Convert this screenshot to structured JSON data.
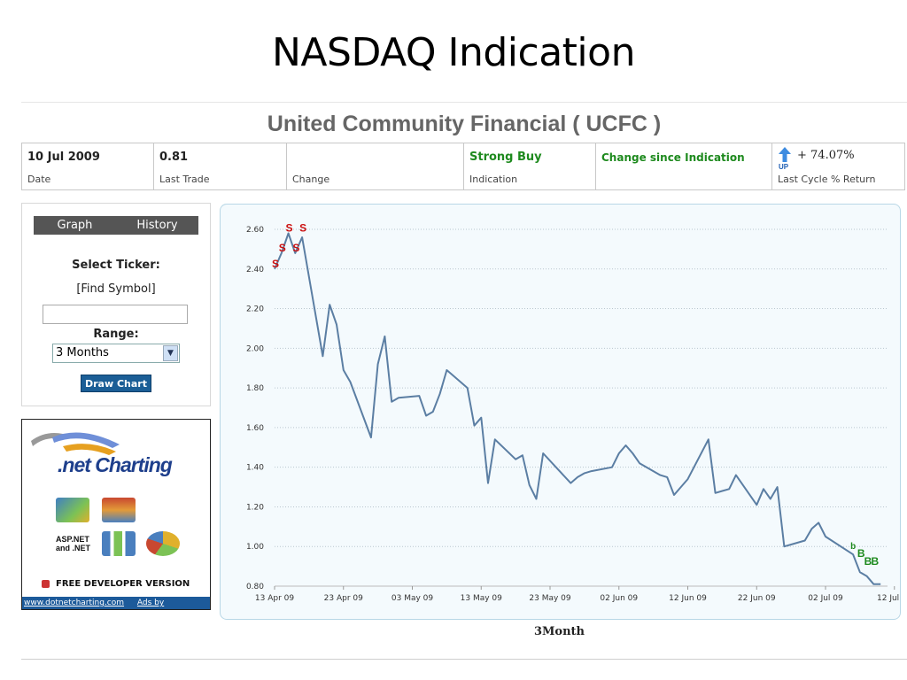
{
  "slide": {
    "title": "NASDAQ Indication"
  },
  "company": {
    "name": "United Community Financial ( UCFC )"
  },
  "info": {
    "date_value": "10 Jul 2009",
    "date_label": "Date",
    "last_trade_value": "0.81",
    "last_trade_label": "Last Trade",
    "change_value": "",
    "change_label": "Change",
    "indication_value": "Strong Buy",
    "indication_label": "Indication",
    "change_since_value": "Change since Indication",
    "change_since_label": "",
    "return_value": "+ 74.07%",
    "return_label": "Last Cycle % Return",
    "return_icon_text": "UP"
  },
  "panel": {
    "tabs": [
      "Graph",
      "History"
    ],
    "select_ticker_label": "Select Ticker:",
    "find_symbol_link": "[Find Symbol]",
    "ticker_value": "",
    "range_label": "Range:",
    "range_value": "3 Months",
    "draw_button": "Draw Chart"
  },
  "ad": {
    "logo_text": ".net Charting",
    "aspnet_line1": "ASP.NET",
    "aspnet_line2": "and .NET",
    "free_text": "FREE DEVELOPER VERSION",
    "link1": "www.dotnetcharting.com",
    "link2": "Ads by Goooooogle"
  },
  "chart_data": {
    "type": "line",
    "title": "",
    "xlabel": "3Month",
    "ylabel": "",
    "ylim": [
      0.8,
      2.6
    ],
    "yticks": [
      "2.60",
      "2.40",
      "2.20",
      "2.00",
      "1.80",
      "1.60",
      "1.40",
      "1.20",
      "1.00",
      "0.80"
    ],
    "xticks": [
      "13 Apr 09",
      "23 Apr 09",
      "03 May 09",
      "13 May 09",
      "23 May 09",
      "02 Jun 09",
      "12 Jun 09",
      "22 Jun 09",
      "02 Jul 09",
      "12 Jul 09"
    ],
    "grid": true,
    "series": [
      {
        "x": [
          "2009-04-13",
          "2009-04-14",
          "2009-04-15",
          "2009-04-16",
          "2009-04-17",
          "2009-04-20",
          "2009-04-21",
          "2009-04-22",
          "2009-04-23",
          "2009-04-24",
          "2009-04-27",
          "2009-04-28",
          "2009-04-29",
          "2009-04-30",
          "2009-05-01",
          "2009-05-04",
          "2009-05-05",
          "2009-05-06",
          "2009-05-07",
          "2009-05-08",
          "2009-05-11",
          "2009-05-12",
          "2009-05-13",
          "2009-05-14",
          "2009-05-15",
          "2009-05-18",
          "2009-05-19",
          "2009-05-20",
          "2009-05-21",
          "2009-05-22",
          "2009-05-26",
          "2009-05-27",
          "2009-05-28",
          "2009-05-29",
          "2009-06-01",
          "2009-06-02",
          "2009-06-03",
          "2009-06-04",
          "2009-06-05",
          "2009-06-08",
          "2009-06-09",
          "2009-06-10",
          "2009-06-11",
          "2009-06-12",
          "2009-06-15",
          "2009-06-16",
          "2009-06-17",
          "2009-06-18",
          "2009-06-19",
          "2009-06-22",
          "2009-06-23",
          "2009-06-24",
          "2009-06-25",
          "2009-06-26",
          "2009-06-29",
          "2009-06-30",
          "2009-07-01",
          "2009-07-02",
          "2009-07-06",
          "2009-07-07",
          "2009-07-08",
          "2009-07-09",
          "2009-07-10"
        ],
        "y": [
          2.4,
          2.48,
          2.58,
          2.48,
          2.56,
          1.96,
          2.22,
          2.12,
          1.89,
          1.83,
          1.55,
          1.92,
          2.06,
          1.73,
          1.75,
          1.76,
          1.66,
          1.68,
          1.77,
          1.89,
          1.8,
          1.61,
          1.65,
          1.32,
          1.54,
          1.44,
          1.46,
          1.31,
          1.24,
          1.47,
          1.32,
          1.35,
          1.37,
          1.38,
          1.4,
          1.47,
          1.51,
          1.47,
          1.42,
          1.36,
          1.35,
          1.26,
          1.3,
          1.34,
          1.54,
          1.27,
          1.28,
          1.29,
          1.36,
          1.21,
          1.29,
          1.24,
          1.3,
          1.0,
          1.03,
          1.09,
          1.12,
          1.05,
          0.96,
          0.87,
          0.85,
          0.81,
          0.81
        ]
      }
    ],
    "signals": [
      {
        "x": "2009-04-13",
        "y": 2.4,
        "label": "S"
      },
      {
        "x": "2009-04-14",
        "y": 2.48,
        "label": "S"
      },
      {
        "x": "2009-04-15",
        "y": 2.58,
        "label": "S"
      },
      {
        "x": "2009-04-16",
        "y": 2.48,
        "label": "S"
      },
      {
        "x": "2009-04-17",
        "y": 2.58,
        "label": "S"
      },
      {
        "x": "2009-07-06",
        "y": 0.96,
        "label": "b"
      },
      {
        "x": "2009-07-07",
        "y": 0.92,
        "label": "B"
      },
      {
        "x": "2009-07-08",
        "y": 0.88,
        "label": "B"
      },
      {
        "x": "2009-07-09",
        "y": 0.88,
        "label": "B"
      }
    ]
  },
  "colors": {
    "line": "#5b7ea3",
    "sell": "#cc1111",
    "buy": "#1e8a1e",
    "accent": "#1b5e96"
  }
}
